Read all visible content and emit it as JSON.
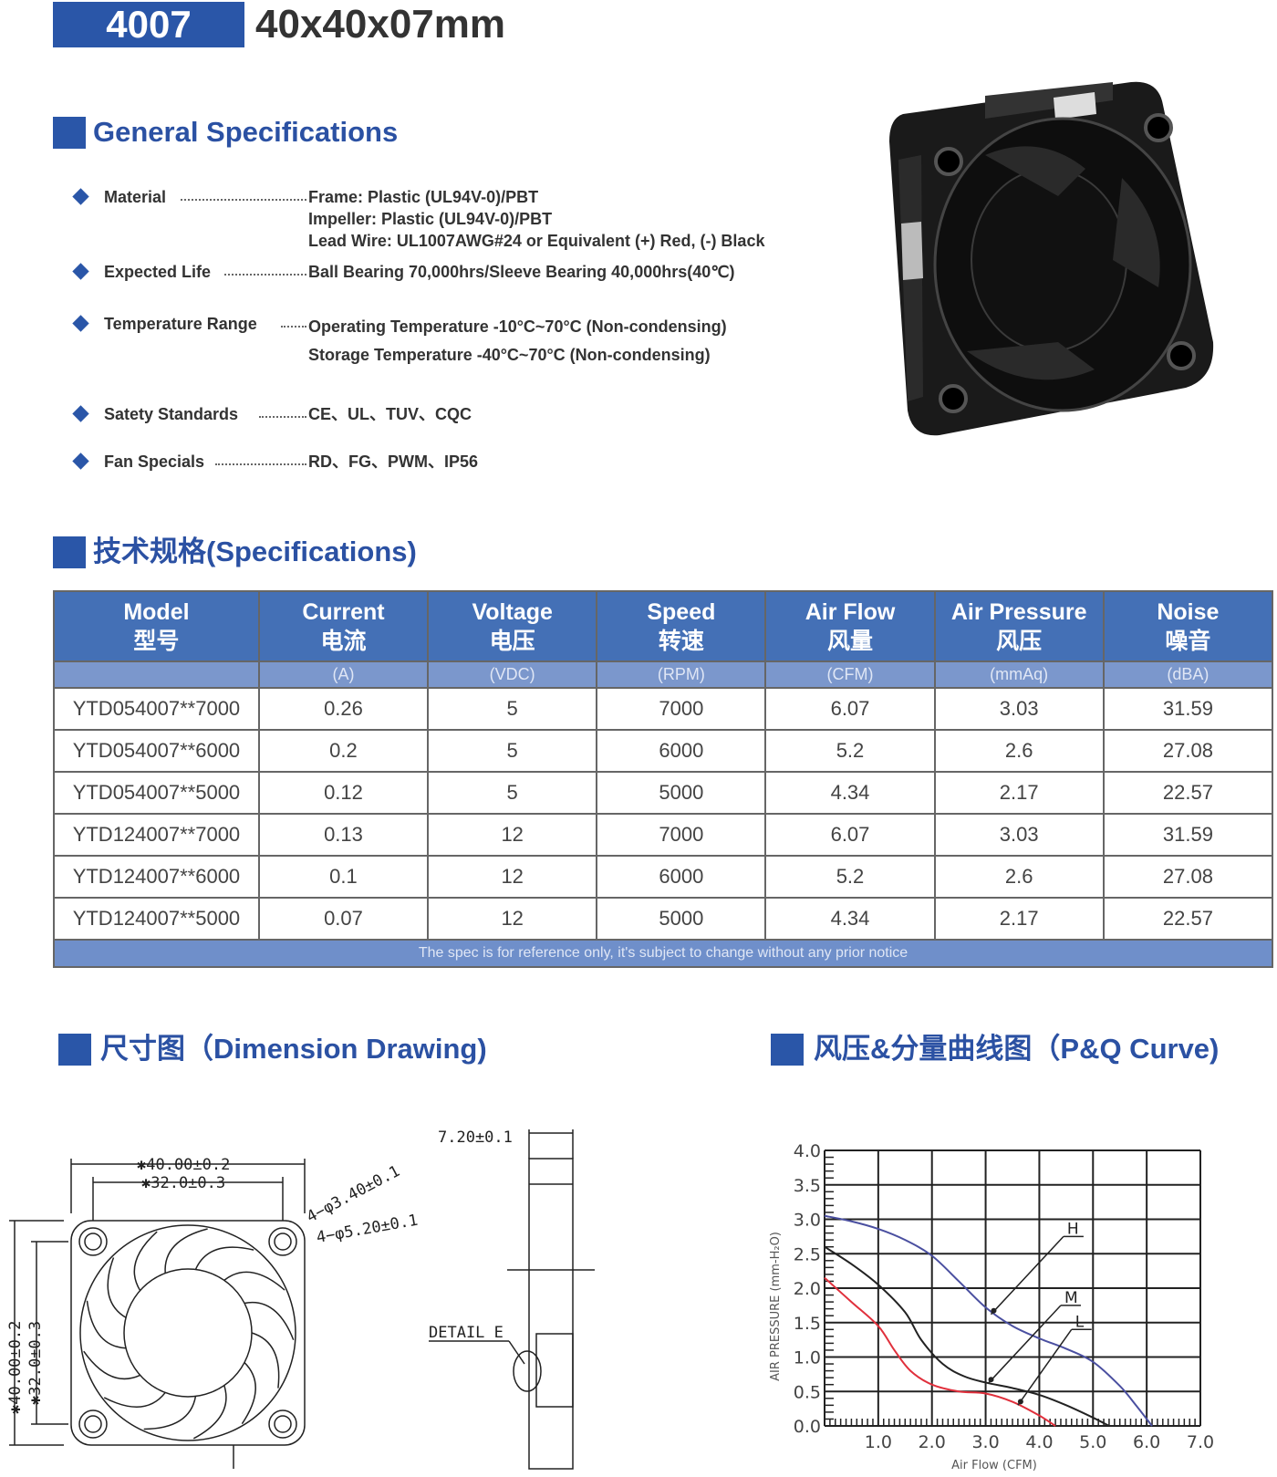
{
  "header": {
    "model": "4007",
    "size": "40x40x07mm"
  },
  "general": {
    "title": "General Specifications",
    "items": [
      {
        "label": "Material",
        "values": [
          "Frame: Plastic (UL94V-0)/PBT",
          "Impeller: Plastic (UL94V-0)/PBT",
          "Lead Wire: UL1007AWG#24 or Equivalent (+) Red, (-) Black"
        ]
      },
      {
        "label": "Expected Life",
        "values": [
          "Ball Bearing 70,000hrs/Sleeve Bearing 40,000hrs(40℃)"
        ]
      },
      {
        "label": "Temperature Range",
        "values": [
          "Operating Temperature -10°C~70°C (Non-condensing)",
          "Storage Temperature -40°C~70°C (Non-condensing)"
        ]
      },
      {
        "label": "Satety Standards",
        "values": [
          "CE、UL、TUV、CQC"
        ]
      },
      {
        "label": "Fan Specials",
        "values": [
          "RD、FG、PWM、IP56"
        ]
      }
    ]
  },
  "specs": {
    "title": "技术规格(Specifications)",
    "columns": [
      {
        "en": "Model",
        "cn": "型号",
        "unit": ""
      },
      {
        "en": "Current",
        "cn": "电流",
        "unit": "(A)"
      },
      {
        "en": "Voltage",
        "cn": "电压",
        "unit": "(VDC)"
      },
      {
        "en": "Speed",
        "cn": "转速",
        "unit": "(RPM)"
      },
      {
        "en": "Air Flow",
        "cn": "风量",
        "unit": "(CFM)"
      },
      {
        "en": "Air Pressure",
        "cn": "风压",
        "unit": "(mmAq)"
      },
      {
        "en": "Noise",
        "cn": "噪音",
        "unit": "(dBA)"
      }
    ],
    "rows": [
      [
        "YTD054007**7000",
        "0.26",
        "5",
        "7000",
        "6.07",
        "3.03",
        "31.59"
      ],
      [
        "YTD054007**6000",
        "0.2",
        "5",
        "6000",
        "5.2",
        "2.6",
        "27.08"
      ],
      [
        "YTD054007**5000",
        "0.12",
        "5",
        "5000",
        "4.34",
        "2.17",
        "22.57"
      ],
      [
        "YTD124007**7000",
        "0.13",
        "12",
        "7000",
        "6.07",
        "3.03",
        "31.59"
      ],
      [
        "YTD124007**6000",
        "0.1",
        "12",
        "6000",
        "5.2",
        "2.6",
        "27.08"
      ],
      [
        "YTD124007**5000",
        "0.07",
        "12",
        "5000",
        "4.34",
        "2.17",
        "22.57"
      ]
    ],
    "note": "The spec is for reference only, it's subject to change without any prior notice"
  },
  "dimension": {
    "title": "尺寸图（Dimension Drawing)",
    "labels": {
      "outer_w": "✱40.00±0.2",
      "inner_w": "✱32.0±0.3",
      "hole1": "4−φ3.40±0.1",
      "hole2": "4−φ5.20±0.1",
      "outer_h": "✱40.00±0.2",
      "inner_h": "✱32.0±0.3",
      "thickness": "7.20±0.1",
      "detail": "DETAIL E"
    }
  },
  "pq": {
    "title": "风压&分量曲线图（P&Q Curve)"
  },
  "chart_data": {
    "type": "line",
    "xlabel": "Air Flow (CFM)",
    "ylabel": "AIR PRESSURE (mm-H₂O)",
    "xlim": [
      0,
      7
    ],
    "ylim": [
      0,
      4
    ],
    "xticks": [
      "1.0",
      "2.0",
      "3.0",
      "4.0",
      "5.0",
      "6.0",
      "7.0"
    ],
    "yticks": [
      "0.0",
      "0.5",
      "1.0",
      "1.5",
      "2.0",
      "2.5",
      "3.0",
      "3.5",
      "4.0"
    ],
    "grid": true,
    "series": [
      {
        "name": "H",
        "color": "#4a4fa0",
        "points": [
          [
            0,
            3.05
          ],
          [
            0.5,
            2.97
          ],
          [
            1,
            2.86
          ],
          [
            1.5,
            2.7
          ],
          [
            2,
            2.47
          ],
          [
            2.5,
            2.1
          ],
          [
            3,
            1.72
          ],
          [
            3.5,
            1.45
          ],
          [
            4,
            1.27
          ],
          [
            4.5,
            1.12
          ],
          [
            5,
            0.93
          ],
          [
            5.5,
            0.58
          ],
          [
            5.8,
            0.3
          ],
          [
            6.1,
            0
          ]
        ]
      },
      {
        "name": "M",
        "color": "#222222",
        "points": [
          [
            0,
            2.6
          ],
          [
            0.5,
            2.35
          ],
          [
            1,
            2.05
          ],
          [
            1.5,
            1.65
          ],
          [
            1.8,
            1.25
          ],
          [
            2.2,
            0.9
          ],
          [
            2.6,
            0.72
          ],
          [
            3,
            0.63
          ],
          [
            3.5,
            0.55
          ],
          [
            4,
            0.45
          ],
          [
            4.5,
            0.3
          ],
          [
            5,
            0.12
          ],
          [
            5.3,
            0
          ]
        ]
      },
      {
        "name": "L",
        "color": "#e0303c",
        "points": [
          [
            0,
            2.15
          ],
          [
            0.5,
            1.8
          ],
          [
            1,
            1.45
          ],
          [
            1.3,
            1.1
          ],
          [
            1.6,
            0.8
          ],
          [
            2,
            0.6
          ],
          [
            2.5,
            0.5
          ],
          [
            3,
            0.47
          ],
          [
            3.5,
            0.35
          ],
          [
            4,
            0.15
          ],
          [
            4.3,
            0
          ]
        ]
      }
    ]
  }
}
